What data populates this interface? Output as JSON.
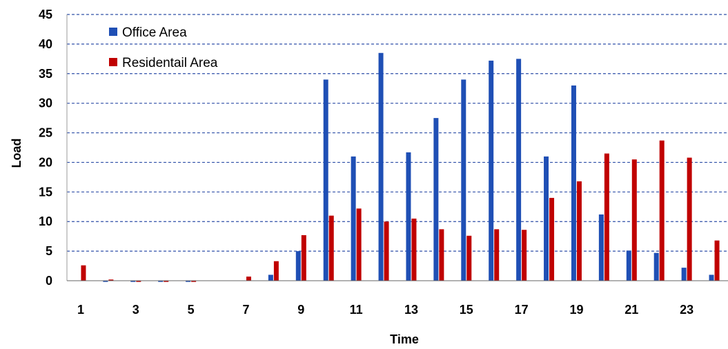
{
  "chart_data": {
    "type": "bar",
    "title": "",
    "xlabel": "Time",
    "ylabel": "Load",
    "ylim": [
      0,
      45
    ],
    "yticks": [
      0,
      5,
      10,
      15,
      20,
      25,
      30,
      35,
      40,
      45
    ],
    "xtick_labels": [
      "1",
      "3",
      "5",
      "7",
      "9",
      "11",
      "13",
      "15",
      "17",
      "19",
      "21",
      "23"
    ],
    "categories": [
      "1",
      "2",
      "3",
      "4",
      "5",
      "6",
      "7",
      "8",
      "9",
      "10",
      "11",
      "12",
      "13",
      "14",
      "15",
      "16",
      "17",
      "18",
      "19",
      "20",
      "21",
      "22",
      "23",
      "24"
    ],
    "grid": "horizontal dashed",
    "legend_position": "top-left",
    "series": [
      {
        "name": "Office Area",
        "color": "#1f4fb5",
        "values": [
          0,
          -0.2,
          -0.2,
          -0.2,
          -0.2,
          0,
          0,
          1,
          5,
          34,
          21,
          38.5,
          21.7,
          27.5,
          34,
          37.2,
          37.5,
          21,
          33,
          11.2,
          5.1,
          4.7,
          2.2,
          1
        ]
      },
      {
        "name": "Residentail Area",
        "color": "#c00000",
        "values": [
          2.6,
          0.2,
          -0.2,
          -0.2,
          -0.2,
          0,
          0.7,
          3.3,
          7.7,
          11,
          12.2,
          10,
          10.5,
          8.7,
          7.6,
          8.7,
          8.6,
          14,
          16.8,
          21.5,
          20.5,
          23.7,
          20.8,
          6.8
        ]
      }
    ]
  }
}
